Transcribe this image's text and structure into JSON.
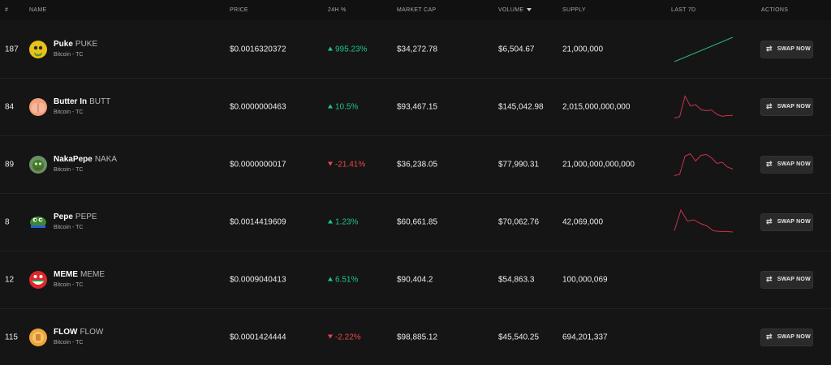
{
  "header": {
    "num": "#",
    "name": "NAME",
    "price": "PRICE",
    "change": "24H %",
    "market_cap": "MARKET CAP",
    "volume": "VOLUME",
    "supply": "SUPPLY",
    "last7d": "LAST 7D",
    "actions": "ACTIONS"
  },
  "colors": {
    "up": "#1fc58a",
    "down": "#e8474f",
    "background": "#151515",
    "sparkline_up": "#2bb673",
    "sparkline_down": "#c9344a"
  },
  "rows": [
    {
      "rank": "187",
      "name": "Puke",
      "symbol": "PUKE",
      "network": "Bitcoin - TC",
      "avatar_icon": "puke-avatar-icon",
      "price": "$0.0016320372",
      "change": "995.23%",
      "direction": "up",
      "market_cap": "$34,272.78",
      "volume": "$6,504.67",
      "supply": "21,000,000",
      "sparkline": [
        0.0,
        1.0
      ],
      "sparkline_trend": "up",
      "action": "SWAP NOW"
    },
    {
      "rank": "84",
      "name": "Butter In",
      "symbol": "BUTT",
      "network": "Bitcoin - TC",
      "avatar_icon": "butt-avatar-icon",
      "price": "$0.0000000463",
      "change": "10.5%",
      "direction": "up",
      "market_cap": "$93,467.15",
      "volume": "$145,042.98",
      "supply": "2,015,000,000,000",
      "sparkline": [
        0.05,
        0.1,
        0.95,
        0.55,
        0.6,
        0.4,
        0.35,
        0.38,
        0.2,
        0.12,
        0.15,
        0.16
      ],
      "sparkline_trend": "down",
      "action": "SWAP NOW"
    },
    {
      "rank": "89",
      "name": "NakaPepe",
      "symbol": "NAKA",
      "network": "Bitcoin - TC",
      "avatar_icon": "nakapepe-avatar-icon",
      "price": "$0.0000000017",
      "change": "-21.41%",
      "direction": "down",
      "market_cap": "$36,238.05",
      "volume": "$77,990.31",
      "supply": "21,000,000,000,000",
      "sparkline": [
        0.05,
        0.1,
        0.85,
        0.95,
        0.65,
        0.88,
        0.92,
        0.78,
        0.55,
        0.6,
        0.4,
        0.32
      ],
      "sparkline_trend": "down",
      "action": "SWAP NOW"
    },
    {
      "rank": "8",
      "name": "Pepe",
      "symbol": "PEPE",
      "network": "Bitcoin - TC",
      "avatar_icon": "pepe-avatar-icon",
      "price": "$0.0014419609",
      "change": "1.23%",
      "direction": "up",
      "market_cap": "$60,661.85",
      "volume": "$70,062.76",
      "supply": "42,069,000",
      "sparkline": [
        0.15,
        1.0,
        0.55,
        0.6,
        0.45,
        0.35,
        0.15,
        0.12,
        0.12,
        0.1
      ],
      "sparkline_trend": "down",
      "action": "SWAP NOW"
    },
    {
      "rank": "12",
      "name": "MEME",
      "symbol": "MEME",
      "network": "Bitcoin - TC",
      "avatar_icon": "meme-avatar-icon",
      "price": "$0.0009040413",
      "change": "6.51%",
      "direction": "up",
      "market_cap": "$90,404.2",
      "volume": "$54,863.3",
      "supply": "100,000,069",
      "sparkline": [],
      "sparkline_trend": "none",
      "action": "SWAP NOW"
    },
    {
      "rank": "115",
      "name": "FLOW",
      "symbol": "FLOW",
      "network": "Bitcoin - TC",
      "avatar_icon": "flow-avatar-icon",
      "price": "$0.0001424444",
      "change": "-2.22%",
      "direction": "down",
      "market_cap": "$98,885.12",
      "volume": "$45,540.25",
      "supply": "694,201,337",
      "sparkline": [],
      "sparkline_trend": "none",
      "action": "SWAP NOW"
    }
  ]
}
